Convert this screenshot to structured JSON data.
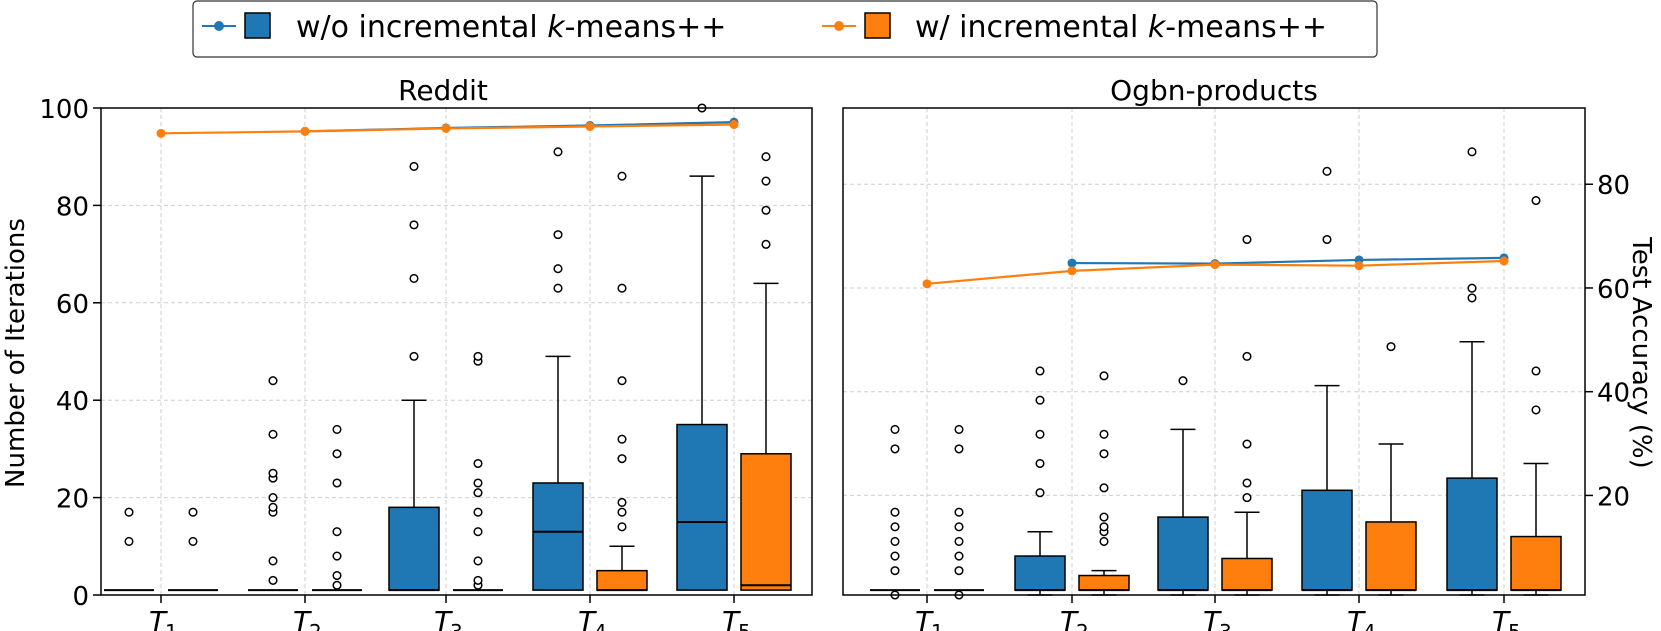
{
  "legend": {
    "entries": [
      {
        "label_prefix": "w/o incremental ",
        "label_k": "k",
        "label_suffix": "-means++",
        "color": "#1f77b4"
      },
      {
        "label_prefix": "w/ incremental ",
        "label_k": "k",
        "label_suffix": "-means++",
        "color": "#ff7f0e"
      }
    ]
  },
  "colors": {
    "without": "#1f77b4",
    "with": "#ff7f0e"
  },
  "chart_data": [
    {
      "type": "box+line",
      "title": "Reddit",
      "ylabel": "Number of Iterations",
      "ylim": [
        0,
        100
      ],
      "yticks": [
        0,
        20,
        40,
        60,
        80,
        100
      ],
      "y2lim": [
        0,
        100
      ],
      "y2ticks": [],
      "categories": [
        {
          "base": "T",
          "sub": "1"
        },
        {
          "base": "T",
          "sub": "2"
        },
        {
          "base": "T",
          "sub": "3"
        },
        {
          "base": "T",
          "sub": "4"
        },
        {
          "base": "T",
          "sub": "5"
        }
      ],
      "boxes": {
        "without": [
          {
            "q1": 1,
            "median": 1,
            "q3": 1,
            "lo": 1,
            "hi": 1,
            "fliers": [
              11,
              17
            ]
          },
          {
            "q1": 1,
            "median": 1,
            "q3": 1,
            "lo": 1,
            "hi": 1,
            "fliers": [
              3,
              7,
              17,
              18,
              20,
              24,
              25,
              33,
              44
            ]
          },
          {
            "q1": 1,
            "median": 1,
            "q3": 18,
            "lo": 1,
            "hi": 40,
            "fliers": [
              49,
              65,
              76,
              88
            ]
          },
          {
            "q1": 1,
            "median": 13,
            "q3": 23,
            "lo": 1,
            "hi": 49,
            "fliers": [
              63,
              67,
              74,
              91
            ]
          },
          {
            "q1": 1,
            "median": 15,
            "q3": 35,
            "lo": 1,
            "hi": 86,
            "fliers": [
              100
            ]
          }
        ],
        "with": [
          {
            "q1": 1,
            "median": 1,
            "q3": 1,
            "lo": 1,
            "hi": 1,
            "fliers": [
              11,
              17
            ]
          },
          {
            "q1": 1,
            "median": 1,
            "q3": 1,
            "lo": 1,
            "hi": 1,
            "fliers": [
              2,
              4,
              8,
              13,
              23,
              29,
              34
            ]
          },
          {
            "q1": 1,
            "median": 1,
            "q3": 1,
            "lo": 1,
            "hi": 1,
            "fliers": [
              2,
              3,
              7,
              13,
              17,
              21,
              23,
              27,
              48,
              49
            ]
          },
          {
            "q1": 1,
            "median": 1,
            "q3": 5,
            "lo": 1,
            "hi": 10,
            "fliers": [
              14,
              17,
              19,
              28,
              32,
              44,
              63,
              86
            ]
          },
          {
            "q1": 1,
            "median": 2,
            "q3": 29,
            "lo": 1,
            "hi": 64,
            "fliers": [
              72,
              79,
              85,
              90
            ]
          }
        ]
      },
      "accuracy": {
        "without": [
          null,
          95.2,
          95.9,
          96.4,
          97.1
        ],
        "with": [
          94.8,
          95.2,
          95.8,
          96.2,
          96.6
        ]
      }
    },
    {
      "type": "box+line",
      "title": "Ogbn-products",
      "ylabel": "",
      "y2label": "Test Accuracy (%)",
      "ylim": [
        0,
        100
      ],
      "yticks": [],
      "y2lim": [
        0.8,
        94.7
      ],
      "y2ticks": [
        20,
        40,
        60,
        80
      ],
      "categories": [
        {
          "base": "T",
          "sub": "1"
        },
        {
          "base": "T",
          "sub": "2"
        },
        {
          "base": "T",
          "sub": "3"
        },
        {
          "base": "T",
          "sub": "4"
        },
        {
          "base": "T",
          "sub": "5"
        }
      ],
      "boxes": {
        "without": [
          {
            "q1": 1,
            "median": 1,
            "q3": 1,
            "lo": 1,
            "hi": 1,
            "fliers": [
              0,
              5,
              8,
              11,
              14,
              17,
              30,
              34
            ]
          },
          {
            "q1": 1,
            "median": 1,
            "q3": 8,
            "lo": 0,
            "hi": 13,
            "fliers": [
              21,
              27,
              33,
              40,
              46
            ]
          },
          {
            "q1": 1,
            "median": 1,
            "q3": 16,
            "lo": 0,
            "hi": 34,
            "fliers": [
              44
            ]
          },
          {
            "q1": 1,
            "median": 1,
            "q3": 21.5,
            "lo": 0,
            "hi": 43,
            "fliers": [
              73,
              87
            ]
          },
          {
            "q1": 1,
            "median": 1,
            "q3": 24,
            "lo": 0,
            "hi": 52,
            "fliers": [
              61,
              63,
              91
            ]
          }
        ],
        "with": [
          {
            "q1": 1,
            "median": 1,
            "q3": 1,
            "lo": 1,
            "hi": 1,
            "fliers": [
              0,
              5,
              8,
              11,
              14,
              17,
              30,
              34
            ]
          },
          {
            "q1": 1,
            "median": 1,
            "q3": 4,
            "lo": 0,
            "hi": 5,
            "fliers": [
              11,
              13,
              14,
              16,
              22,
              29,
              33,
              45
            ]
          },
          {
            "q1": 1,
            "median": 1,
            "q3": 7.5,
            "lo": 0,
            "hi": 17,
            "fliers": [
              20,
              23,
              31,
              49,
              73
            ]
          },
          {
            "q1": 1,
            "median": 1,
            "q3": 15,
            "lo": 0,
            "hi": 31,
            "fliers": [
              51
            ]
          },
          {
            "q1": 1,
            "median": 1,
            "q3": 12,
            "lo": 0,
            "hi": 27,
            "fliers": [
              38,
              46,
              81
            ]
          }
        ]
      },
      "accuracy": {
        "without": [
          null,
          64.8,
          64.7,
          65.4,
          65.8
        ],
        "with": [
          60.8,
          63.3,
          64.5,
          64.3,
          65.2
        ]
      }
    }
  ]
}
